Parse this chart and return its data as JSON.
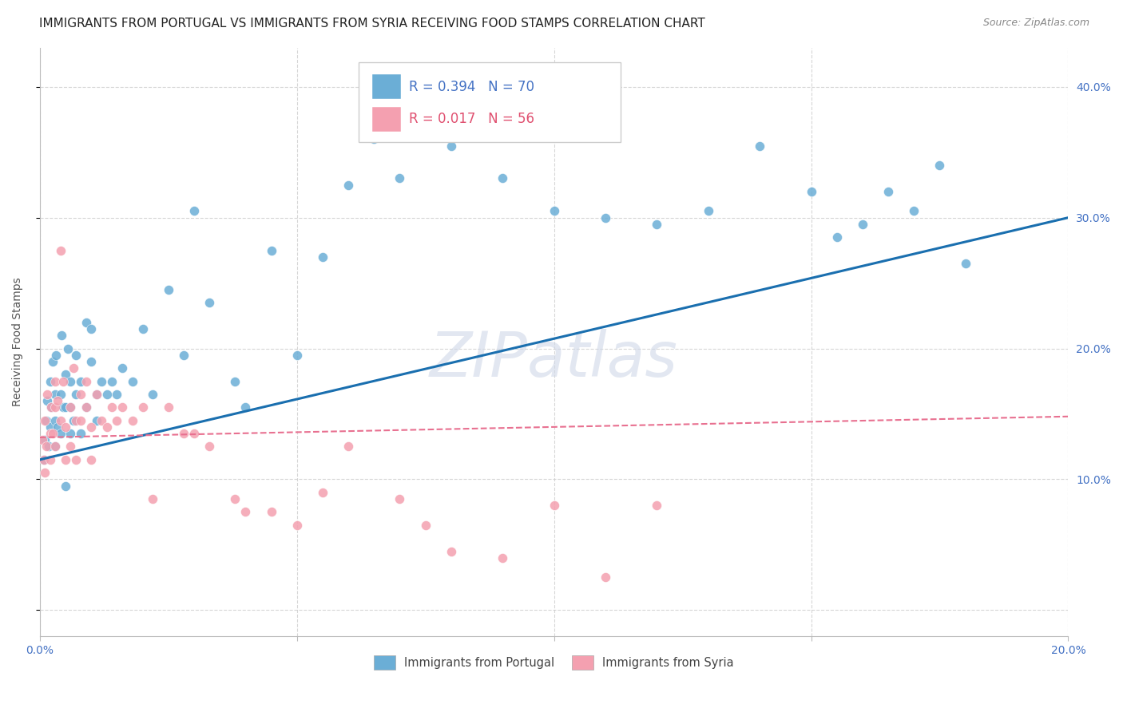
{
  "title": "IMMIGRANTS FROM PORTUGAL VS IMMIGRANTS FROM SYRIA RECEIVING FOOD STAMPS CORRELATION CHART",
  "source": "Source: ZipAtlas.com",
  "ylabel": "Receiving Food Stamps",
  "yticks": [
    0.0,
    0.1,
    0.2,
    0.3,
    0.4
  ],
  "ytick_labels": [
    "",
    "10.0%",
    "20.0%",
    "30.0%",
    "40.0%"
  ],
  "xlim": [
    0.0,
    0.2
  ],
  "ylim": [
    -0.02,
    0.43
  ],
  "legend_r1": "R = 0.394",
  "legend_n1": "N = 70",
  "legend_r2": "R = 0.017",
  "legend_n2": "N = 56",
  "legend_label1": "Immigrants from Portugal",
  "legend_label2": "Immigrants from Syria",
  "portugal_color": "#6baed6",
  "syria_color": "#f4a0b0",
  "portugal_line_color": "#1a6faf",
  "syria_line_color": "#e87090",
  "watermark": "ZIPatlas",
  "title_fontsize": 11,
  "axis_label_fontsize": 10,
  "tick_fontsize": 10,
  "portugal_scatter_x": [
    0.0008,
    0.001,
    0.0012,
    0.0015,
    0.0018,
    0.002,
    0.002,
    0.0022,
    0.0025,
    0.003,
    0.003,
    0.003,
    0.0032,
    0.0035,
    0.004,
    0.004,
    0.0042,
    0.0045,
    0.005,
    0.005,
    0.005,
    0.0055,
    0.006,
    0.006,
    0.006,
    0.0065,
    0.007,
    0.007,
    0.008,
    0.008,
    0.009,
    0.009,
    0.01,
    0.01,
    0.011,
    0.011,
    0.012,
    0.013,
    0.014,
    0.015,
    0.016,
    0.018,
    0.02,
    0.022,
    0.025,
    0.028,
    0.03,
    0.033,
    0.038,
    0.04,
    0.045,
    0.05,
    0.055,
    0.06,
    0.065,
    0.07,
    0.08,
    0.09,
    0.1,
    0.11,
    0.12,
    0.13,
    0.14,
    0.15,
    0.155,
    0.16,
    0.165,
    0.17,
    0.175,
    0.18
  ],
  "portugal_scatter_y": [
    0.115,
    0.13,
    0.145,
    0.16,
    0.125,
    0.14,
    0.175,
    0.155,
    0.19,
    0.165,
    0.145,
    0.125,
    0.195,
    0.14,
    0.135,
    0.165,
    0.21,
    0.155,
    0.18,
    0.155,
    0.095,
    0.2,
    0.135,
    0.155,
    0.175,
    0.145,
    0.165,
    0.195,
    0.135,
    0.175,
    0.22,
    0.155,
    0.215,
    0.19,
    0.165,
    0.145,
    0.175,
    0.165,
    0.175,
    0.165,
    0.185,
    0.175,
    0.215,
    0.165,
    0.245,
    0.195,
    0.305,
    0.235,
    0.175,
    0.155,
    0.275,
    0.195,
    0.27,
    0.325,
    0.36,
    0.33,
    0.355,
    0.33,
    0.305,
    0.3,
    0.295,
    0.305,
    0.355,
    0.32,
    0.285,
    0.295,
    0.32,
    0.305,
    0.34,
    0.265
  ],
  "syria_scatter_x": [
    0.0005,
    0.0008,
    0.001,
    0.001,
    0.0012,
    0.0015,
    0.002,
    0.002,
    0.0022,
    0.0025,
    0.003,
    0.003,
    0.003,
    0.0035,
    0.004,
    0.004,
    0.0045,
    0.005,
    0.005,
    0.006,
    0.006,
    0.0065,
    0.007,
    0.007,
    0.008,
    0.008,
    0.009,
    0.009,
    0.01,
    0.01,
    0.011,
    0.012,
    0.013,
    0.014,
    0.015,
    0.016,
    0.018,
    0.02,
    0.022,
    0.025,
    0.028,
    0.03,
    0.033,
    0.038,
    0.04,
    0.045,
    0.05,
    0.055,
    0.06,
    0.07,
    0.075,
    0.08,
    0.09,
    0.1,
    0.11,
    0.12
  ],
  "syria_scatter_y": [
    0.13,
    0.115,
    0.145,
    0.105,
    0.125,
    0.165,
    0.135,
    0.115,
    0.155,
    0.135,
    0.175,
    0.155,
    0.125,
    0.16,
    0.275,
    0.145,
    0.175,
    0.14,
    0.115,
    0.155,
    0.125,
    0.185,
    0.145,
    0.115,
    0.165,
    0.145,
    0.175,
    0.155,
    0.14,
    0.115,
    0.165,
    0.145,
    0.14,
    0.155,
    0.145,
    0.155,
    0.145,
    0.155,
    0.085,
    0.155,
    0.135,
    0.135,
    0.125,
    0.085,
    0.075,
    0.075,
    0.065,
    0.09,
    0.125,
    0.085,
    0.065,
    0.045,
    0.04,
    0.08,
    0.025,
    0.08
  ],
  "portugal_line_x": [
    0.0,
    0.2
  ],
  "portugal_line_y": [
    0.115,
    0.3
  ],
  "syria_line_x": [
    0.0,
    0.2
  ],
  "syria_line_y": [
    0.132,
    0.148
  ],
  "background_color": "#ffffff",
  "grid_color": "#cccccc"
}
